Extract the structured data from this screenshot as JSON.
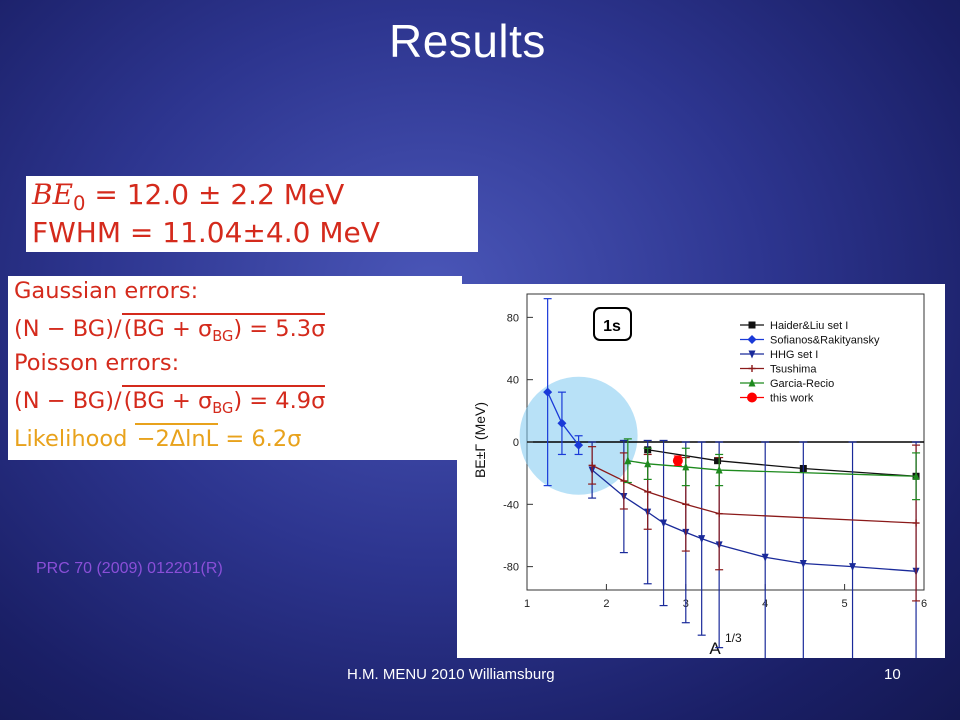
{
  "slide": {
    "title": "Results",
    "be_line_1": {
      "lhs": "BE",
      "sub": "0",
      "rhs": " = 12.0 ± 2.2 MeV"
    },
    "be_line_2": "FWHM = 11.04±4.0 MeV",
    "gaussian_label": "Gaussian errors:",
    "gaussian_formula": {
      "a": "(N − BG)/",
      "b": "(BG + σ",
      "sub": "BG",
      "c": ") = 5.3σ"
    },
    "poisson_label": "Poisson errors:",
    "poisson_formula": {
      "a": "(N − BG)/",
      "b": "(BG + σ",
      "sub": "BG",
      "c": ") = 4.9σ"
    },
    "likelihood": {
      "label": "Likelihood ",
      "root": "−2ΔlnL",
      "result": " = 6.2σ"
    },
    "reference": "PRC 70 (2009) 012201(R)",
    "footer": "H.M.  MENU 2010 Williamsburg",
    "page_number": "10"
  },
  "colors": {
    "haider": "#111111",
    "sofianos": "#1a3ad8",
    "hhg": "#1a2a9a",
    "tsushima": "#8b1a1a",
    "garcia": "#1e8a1e",
    "thiswork": "#ff0000",
    "highlight": "#7ec8f0"
  },
  "chart_data": {
    "type": "line",
    "box_label": "1s",
    "xlabel": "A",
    "xlabel_sup": "1/3",
    "ylabel": "BE±Γ (MeV)",
    "xlim": [
      1,
      6
    ],
    "ylim": [
      -95,
      95
    ],
    "x_ticks": [
      1,
      2,
      3,
      4,
      5,
      6
    ],
    "y_ticks": [
      80,
      40,
      0,
      -40,
      -80
    ],
    "series": [
      {
        "name": "Haider&Liu set I",
        "marker": "square",
        "colorKey": "haider",
        "x": [
          2.52,
          3.4,
          4.48,
          5.9
        ],
        "y": [
          -5,
          -12,
          -17,
          -22
        ],
        "err": [
          0,
          0,
          0,
          0
        ]
      },
      {
        "name": "Sofianos&Rakityansky",
        "marker": "diamond",
        "colorKey": "sofianos",
        "x": [
          1.26,
          1.44,
          1.65
        ],
        "y": [
          32,
          12,
          -2
        ],
        "err": [
          60,
          20,
          6
        ]
      },
      {
        "name": "HHG set I",
        "marker": "tri-down",
        "colorKey": "hhg",
        "x": [
          1.82,
          2.22,
          2.52,
          2.72,
          3.0,
          3.2,
          3.42,
          4.0,
          4.48,
          5.1,
          5.9
        ],
        "y": [
          -18,
          -35,
          -45,
          -52,
          -58,
          -62,
          -66,
          -74,
          -78,
          -80,
          -83
        ],
        "err": [
          18,
          36,
          46,
          53,
          58,
          62,
          66,
          74,
          78,
          80,
          83
        ]
      },
      {
        "name": "Tsushima",
        "marker": "plus",
        "colorKey": "tsushima",
        "x": [
          1.82,
          2.22,
          2.52,
          3.0,
          3.42,
          5.9
        ],
        "y": [
          -15,
          -25,
          -32,
          -40,
          -46,
          -52
        ],
        "err": [
          12,
          18,
          24,
          30,
          36,
          50
        ]
      },
      {
        "name": "Garcia-Recio",
        "marker": "triangle",
        "colorKey": "garcia",
        "x": [
          2.27,
          2.52,
          3.0,
          3.42,
          5.9
        ],
        "y": [
          -12,
          -14,
          -16,
          -18,
          -22
        ],
        "err": [
          14,
          10,
          12,
          10,
          15
        ]
      },
      {
        "name": "this work",
        "marker": "circle",
        "colorKey": "thiswork",
        "x": [
          2.9
        ],
        "y": [
          -12
        ],
        "err": [
          3
        ]
      }
    ]
  }
}
